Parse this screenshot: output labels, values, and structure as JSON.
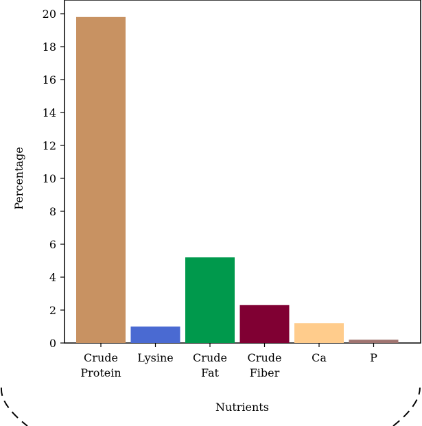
{
  "chart_data": {
    "type": "bar",
    "categories": [
      [
        "Crude",
        "Protein"
      ],
      [
        "Lysine"
      ],
      [
        "Crude",
        "Fat"
      ],
      [
        "Crude",
        "Fiber"
      ],
      [
        "Ca"
      ],
      [
        "P"
      ]
    ],
    "values": [
      19.8,
      1.0,
      5.2,
      2.3,
      1.2,
      0.2
    ],
    "colors": [
      "#c89262",
      "#4a6ad2",
      "#00994c",
      "#800033",
      "#ffcc8c",
      "#a07470"
    ],
    "xlabel": "Nutrients",
    "ylabel": "Percentage",
    "ylim": [
      0,
      20
    ],
    "yticks": [
      "0",
      "2",
      "4",
      "6",
      "8",
      "10",
      "12",
      "14",
      "16",
      "18",
      "20"
    ],
    "grid": false,
    "legend": "none"
  },
  "frame": {
    "border_color": "#000000",
    "background": "#ffffff",
    "outer_style": "dashed-rounded-card"
  }
}
